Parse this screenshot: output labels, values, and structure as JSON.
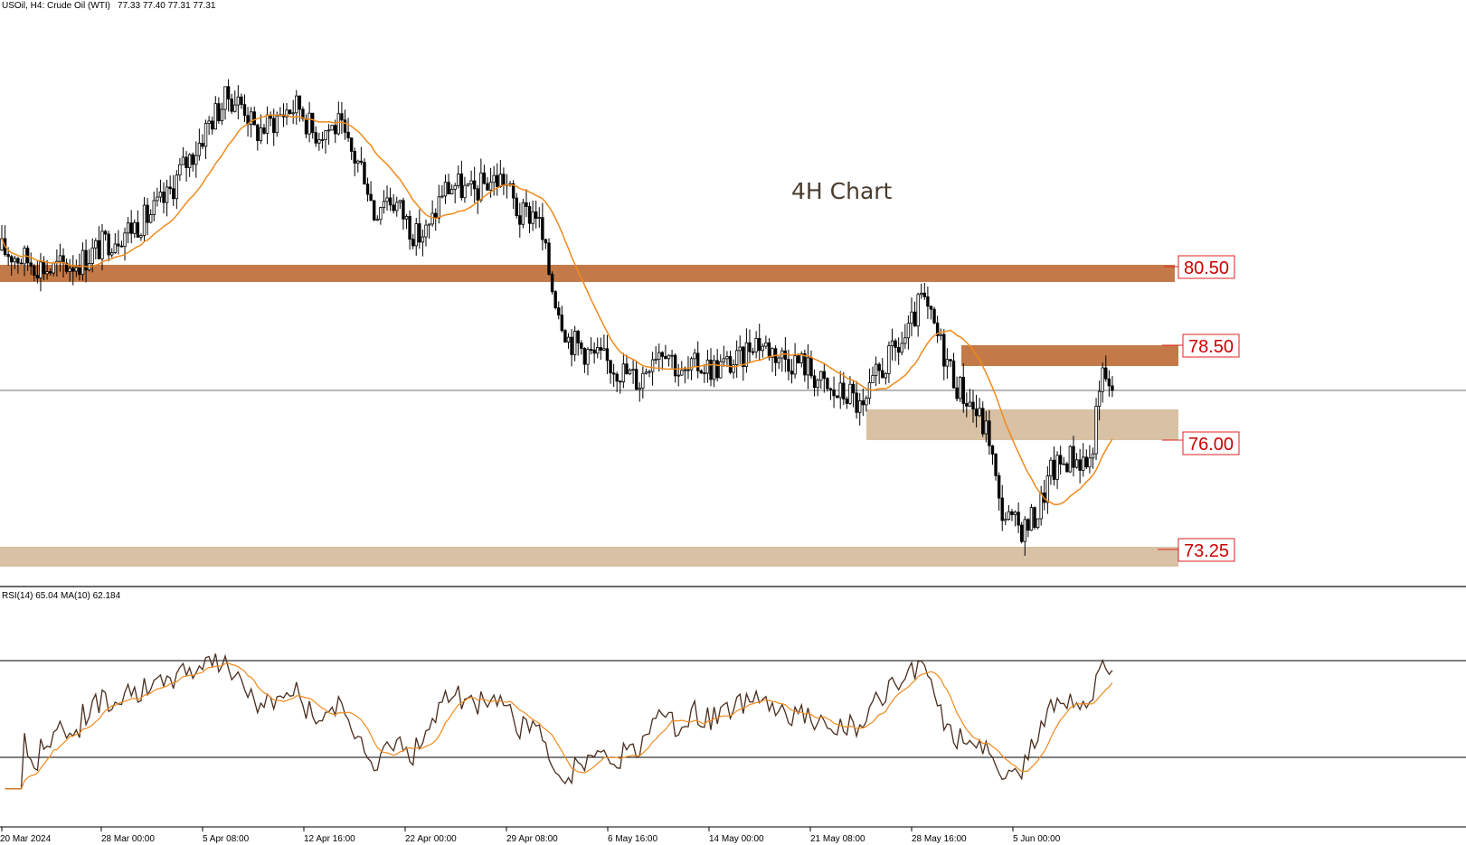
{
  "header": {
    "symbol": "USOil, H4:  Crude Oil (WTI)",
    "ohlc": "77.33 77.40 77.31 77.31"
  },
  "annotation": "4H Chart",
  "colors": {
    "resistance": "#c47a48",
    "support": "#d8c1a4",
    "candle": "#000000",
    "ma": "#f08a1c",
    "rsi": "#4a2e1e",
    "level_border": "#e02020",
    "level_text": "#cc0000"
  },
  "rsi_header": "RSI(14) 65.04 MA(10) 62.184",
  "chart_data": {
    "type": "candlestick",
    "timeframe": "H4",
    "instrument": "Crude Oil (WTI)",
    "current_price": 77.31,
    "x_ticks": [
      "20 Mar 2024",
      "28 Mar 00:00",
      "5 Apr 08:00",
      "12 Apr 16:00",
      "22 Apr 00:00",
      "29 Apr 08:00",
      "6 May 16:00",
      "14 May 00:00",
      "21 May 08:00",
      "28 May 16:00",
      "5 Jun 00:00"
    ],
    "levels": [
      {
        "label": "80.50",
        "value": 80.5,
        "kind": "resistance"
      },
      {
        "label": "78.50",
        "value": 78.5,
        "kind": "resistance"
      },
      {
        "label": "76.00",
        "value": 76.0,
        "kind": "support"
      },
      {
        "label": "73.25",
        "value": 73.25,
        "kind": "support"
      }
    ],
    "price_path": [
      [
        0,
        81.6
      ],
      [
        10,
        81.2
      ],
      [
        15,
        81.0
      ],
      [
        25,
        81.3
      ],
      [
        33,
        81.9
      ],
      [
        40,
        82.3
      ],
      [
        45,
        82.6
      ],
      [
        51,
        83.2
      ],
      [
        55,
        84.0
      ],
      [
        60,
        84.7
      ],
      [
        64,
        85.5
      ],
      [
        70,
        86.3
      ],
      [
        75,
        86.0
      ],
      [
        78,
        85.2
      ],
      [
        82,
        85.4
      ],
      [
        88,
        85.9
      ],
      [
        92,
        86.0
      ],
      [
        96,
        85.2
      ],
      [
        104,
        85.4
      ],
      [
        107,
        84.7
      ],
      [
        112,
        84.0
      ],
      [
        115,
        82.7
      ],
      [
        118,
        83.3
      ],
      [
        122,
        83.0
      ],
      [
        128,
        82.0
      ],
      [
        132,
        82.2
      ],
      [
        136,
        83.4
      ],
      [
        140,
        83.6
      ],
      [
        145,
        83.3
      ],
      [
        150,
        83.7
      ],
      [
        155,
        83.8
      ],
      [
        160,
        82.6
      ],
      [
        165,
        82.8
      ],
      [
        170,
        80.5
      ],
      [
        175,
        78.9
      ],
      [
        182,
        78.4
      ],
      [
        190,
        78.0
      ],
      [
        197,
        77.6
      ],
      [
        201,
        78.5
      ],
      [
        205,
        78.7
      ],
      [
        210,
        77.7
      ],
      [
        215,
        78.1
      ],
      [
        220,
        78.0
      ],
      [
        228,
        78.2
      ],
      [
        232,
        78.9
      ],
      [
        240,
        78.4
      ],
      [
        248,
        78.1
      ],
      [
        256,
        77.2
      ],
      [
        262,
        77.2
      ],
      [
        266,
        76.6
      ],
      [
        270,
        77.7
      ],
      [
        275,
        78.4
      ],
      [
        280,
        79.0
      ],
      [
        284,
        80.1
      ],
      [
        288,
        79.2
      ],
      [
        295,
        77.5
      ],
      [
        300,
        76.8
      ],
      [
        305,
        75.9
      ],
      [
        308,
        73.8
      ],
      [
        312,
        73.2
      ],
      [
        316,
        73.1
      ],
      [
        320,
        73.6
      ],
      [
        324,
        74.8
      ],
      [
        330,
        75.3
      ],
      [
        336,
        75.1
      ],
      [
        340,
        77.8
      ],
      [
        343,
        77.4
      ]
    ],
    "rsi": {
      "period": 14,
      "value": 65.04,
      "ma_period": 10,
      "ma_value": 62.184,
      "levels": [
        70,
        30
      ],
      "ylim": [
        15,
        85
      ]
    }
  }
}
